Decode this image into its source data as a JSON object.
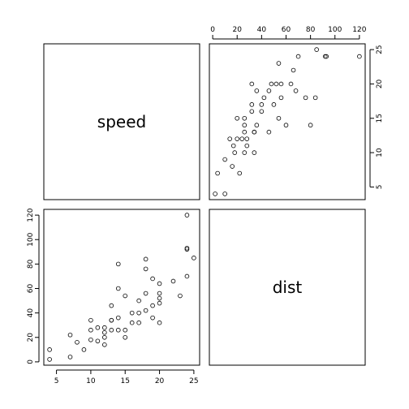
{
  "chart_data": {
    "type": "scatter",
    "title": "",
    "variables": [
      "speed",
      "dist"
    ],
    "speed_ticks": [
      5,
      10,
      15,
      20,
      25
    ],
    "dist_ticks": [
      0,
      20,
      40,
      60,
      80,
      100,
      120
    ],
    "speed_range": [
      3.16,
      25.84
    ],
    "dist_range": [
      -2.72,
      124.72
    ],
    "points": [
      [
        4,
        2
      ],
      [
        4,
        10
      ],
      [
        7,
        4
      ],
      [
        7,
        22
      ],
      [
        8,
        16
      ],
      [
        9,
        10
      ],
      [
        10,
        18
      ],
      [
        10,
        26
      ],
      [
        10,
        34
      ],
      [
        11,
        17
      ],
      [
        11,
        28
      ],
      [
        12,
        14
      ],
      [
        12,
        20
      ],
      [
        12,
        24
      ],
      [
        12,
        28
      ],
      [
        13,
        26
      ],
      [
        13,
        34
      ],
      [
        13,
        34
      ],
      [
        13,
        46
      ],
      [
        14,
        26
      ],
      [
        14,
        36
      ],
      [
        14,
        60
      ],
      [
        14,
        80
      ],
      [
        15,
        20
      ],
      [
        15,
        26
      ],
      [
        15,
        54
      ],
      [
        16,
        32
      ],
      [
        16,
        40
      ],
      [
        17,
        32
      ],
      [
        17,
        40
      ],
      [
        17,
        50
      ],
      [
        18,
        42
      ],
      [
        18,
        56
      ],
      [
        18,
        76
      ],
      [
        18,
        84
      ],
      [
        19,
        36
      ],
      [
        19,
        46
      ],
      [
        19,
        68
      ],
      [
        20,
        32
      ],
      [
        20,
        48
      ],
      [
        20,
        52
      ],
      [
        20,
        56
      ],
      [
        20,
        64
      ],
      [
        22,
        66
      ],
      [
        23,
        54
      ],
      [
        24,
        70
      ],
      [
        24,
        92
      ],
      [
        24,
        93
      ],
      [
        24,
        120
      ],
      [
        25,
        85
      ]
    ],
    "grid": false,
    "legend": "none"
  }
}
